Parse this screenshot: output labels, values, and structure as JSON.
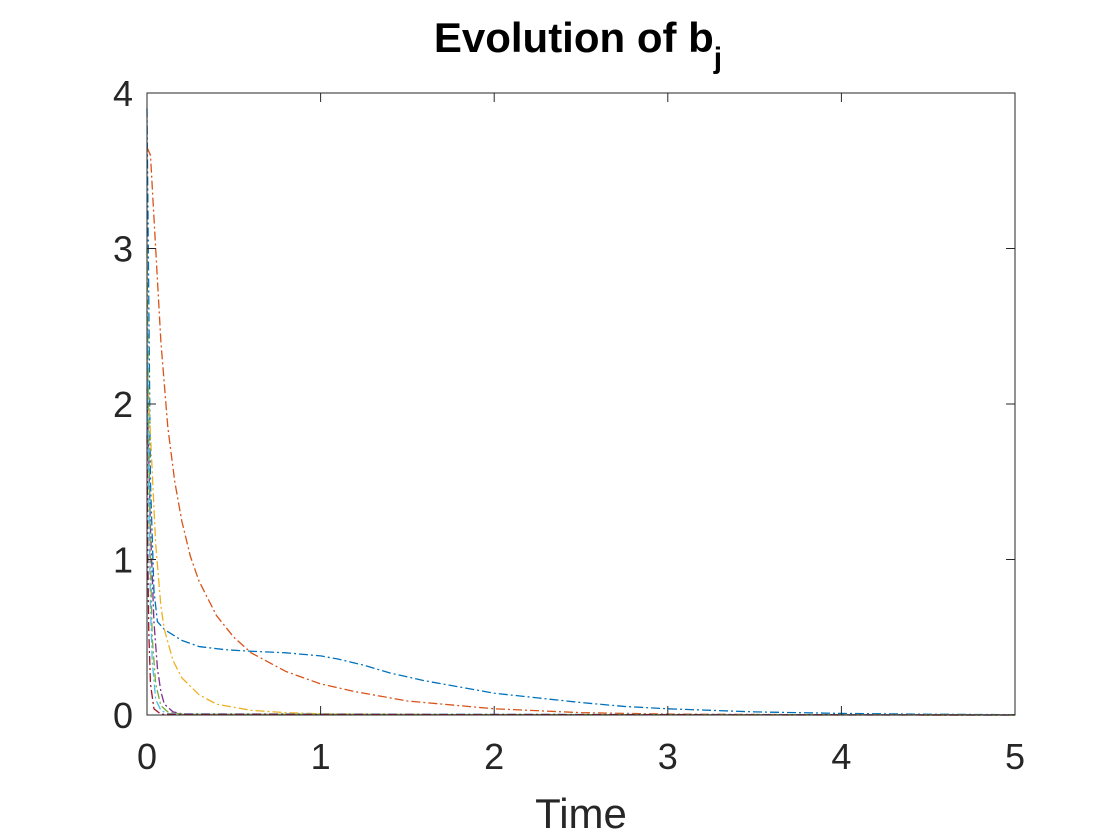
{
  "chart_data": {
    "type": "line",
    "title": "Evolution of b",
    "title_subscript": "j",
    "xlabel": "Time",
    "ylabel": "",
    "xlim": [
      0,
      5
    ],
    "ylim": [
      0,
      4
    ],
    "xticks": [
      0,
      1,
      2,
      3,
      4,
      5
    ],
    "yticks": [
      0,
      1,
      2,
      3,
      4
    ],
    "xtick_labels": [
      "0",
      "1",
      "2",
      "3",
      "4",
      "5"
    ],
    "ytick_labels": [
      "0",
      "1",
      "2",
      "3",
      "4"
    ],
    "grid": false,
    "line_style": "dash-dot",
    "series": [
      {
        "color": "#0072BD",
        "x": [
          0,
          0.02,
          0.04,
          0.06,
          0.1,
          0.2,
          0.3,
          0.45,
          0.6,
          0.8,
          1.0,
          1.1,
          1.25,
          1.4,
          1.6,
          1.8,
          2.0,
          2.25,
          2.5,
          2.75,
          3.0,
          3.5,
          4.0,
          4.5,
          5.0
        ],
        "y": [
          3.9,
          1.5,
          0.8,
          0.6,
          0.55,
          0.48,
          0.44,
          0.42,
          0.41,
          0.4,
          0.38,
          0.36,
          0.32,
          0.27,
          0.22,
          0.18,
          0.14,
          0.11,
          0.08,
          0.055,
          0.04,
          0.02,
          0.01,
          0.005,
          0.002
        ]
      },
      {
        "color": "#D95319",
        "x": [
          0,
          0.02,
          0.05,
          0.08,
          0.12,
          0.16,
          0.2,
          0.25,
          0.3,
          0.4,
          0.5,
          0.6,
          0.8,
          1.0,
          1.2,
          1.5,
          2.0,
          2.5,
          3.0,
          4.0,
          5.0
        ],
        "y": [
          3.65,
          3.6,
          3.0,
          2.4,
          1.85,
          1.5,
          1.25,
          1.02,
          0.86,
          0.64,
          0.5,
          0.4,
          0.28,
          0.2,
          0.15,
          0.09,
          0.04,
          0.015,
          0.006,
          0.001,
          0.0
        ]
      },
      {
        "color": "#EDB120",
        "x": [
          0,
          0.02,
          0.05,
          0.08,
          0.1,
          0.15,
          0.2,
          0.3,
          0.4,
          0.6,
          0.8,
          1.0,
          1.5,
          2.0,
          5.0
        ],
        "y": [
          2.3,
          1.8,
          1.1,
          0.7,
          0.55,
          0.35,
          0.24,
          0.13,
          0.07,
          0.03,
          0.015,
          0.008,
          0.003,
          0.001,
          0.0
        ]
      },
      {
        "color": "#7E2F8E",
        "x": [
          0,
          0.02,
          0.04,
          0.06,
          0.08,
          0.1,
          0.15,
          0.2,
          0.3,
          5.0
        ],
        "y": [
          2.1,
          1.2,
          0.6,
          0.3,
          0.15,
          0.07,
          0.02,
          0.008,
          0.002,
          0.0
        ]
      },
      {
        "color": "#77AC30",
        "x": [
          0,
          0.01,
          0.02,
          0.03,
          0.05,
          0.08,
          0.12,
          0.2,
          5.0
        ],
        "y": [
          3.0,
          1.8,
          1.0,
          0.5,
          0.2,
          0.06,
          0.02,
          0.005,
          0.0
        ]
      },
      {
        "color": "#4DBEEE",
        "x": [
          0,
          0.01,
          0.02,
          0.03,
          0.05,
          0.08,
          0.12,
          5.0
        ],
        "y": [
          2.6,
          1.4,
          0.7,
          0.35,
          0.1,
          0.03,
          0.008,
          0.0
        ]
      },
      {
        "color": "#A2142F",
        "x": [
          0,
          0.005,
          0.01,
          0.02,
          0.04,
          0.08,
          5.0
        ],
        "y": [
          1.8,
          1.0,
          0.55,
          0.2,
          0.04,
          0.005,
          0.0
        ]
      }
    ]
  }
}
